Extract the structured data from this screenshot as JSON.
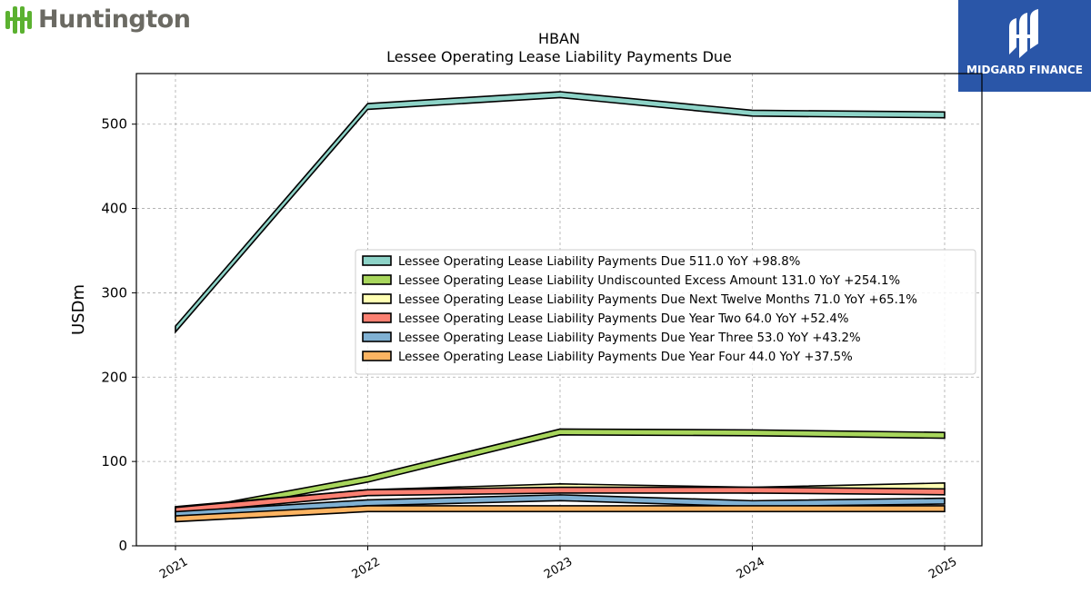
{
  "brand_left": {
    "name": "Huntington",
    "icon": "huntington-logo-icon",
    "color": "#6b6a63",
    "icon_color": "#5bb130"
  },
  "brand_right": {
    "name": "MIDGARD FINANCE",
    "icon": "midgard-logo-icon",
    "background": "#2a56a8"
  },
  "chart_data": {
    "type": "area",
    "title": "HBAN",
    "subtitle": "Lessee Operating Lease Liability Payments Due",
    "ylabel": "USDm",
    "xlabel": "",
    "x": [
      "2021",
      "2022",
      "2023",
      "2024",
      "2025"
    ],
    "ylim": [
      0,
      560
    ],
    "yticks": [
      0,
      100,
      200,
      300,
      400,
      500
    ],
    "grid": true,
    "legend_position": "center-right",
    "series": [
      {
        "name": "Lessee Operating Lease Liability Payments Due  511.0 YoY +98.8%",
        "values": [
          257,
          521,
          535,
          513,
          511
        ],
        "color": "#8dd3c7"
      },
      {
        "name": "Lessee Operating Lease Liability Undiscounted Excess Amount  131.0 YoY +254.1%",
        "values": [
          37,
          79,
          135,
          134,
          131
        ],
        "color": "#a8d65c"
      },
      {
        "name": "Lessee Operating Lease Liability Payments Due Next Twelve Months  71.0 YoY +65.1%",
        "values": [
          43,
          63,
          70,
          66,
          71
        ],
        "color": "#ffffb3"
      },
      {
        "name": "Lessee Operating Lease Liability Payments Due Year Two  64.0 YoY +52.4%",
        "values": [
          42,
          63,
          66,
          66,
          64
        ],
        "color": "#fb8072"
      },
      {
        "name": "Lessee Operating Lease Liability Payments Due Year Three  53.0 YoY +43.2%",
        "values": [
          37,
          51,
          57,
          50,
          53
        ],
        "color": "#80b1d3"
      },
      {
        "name": "Lessee Operating Lease Liability Payments Due Year Four  44.0 YoY +37.5%",
        "values": [
          32,
          44,
          44,
          44,
          44
        ],
        "color": "#fdb462"
      }
    ]
  }
}
